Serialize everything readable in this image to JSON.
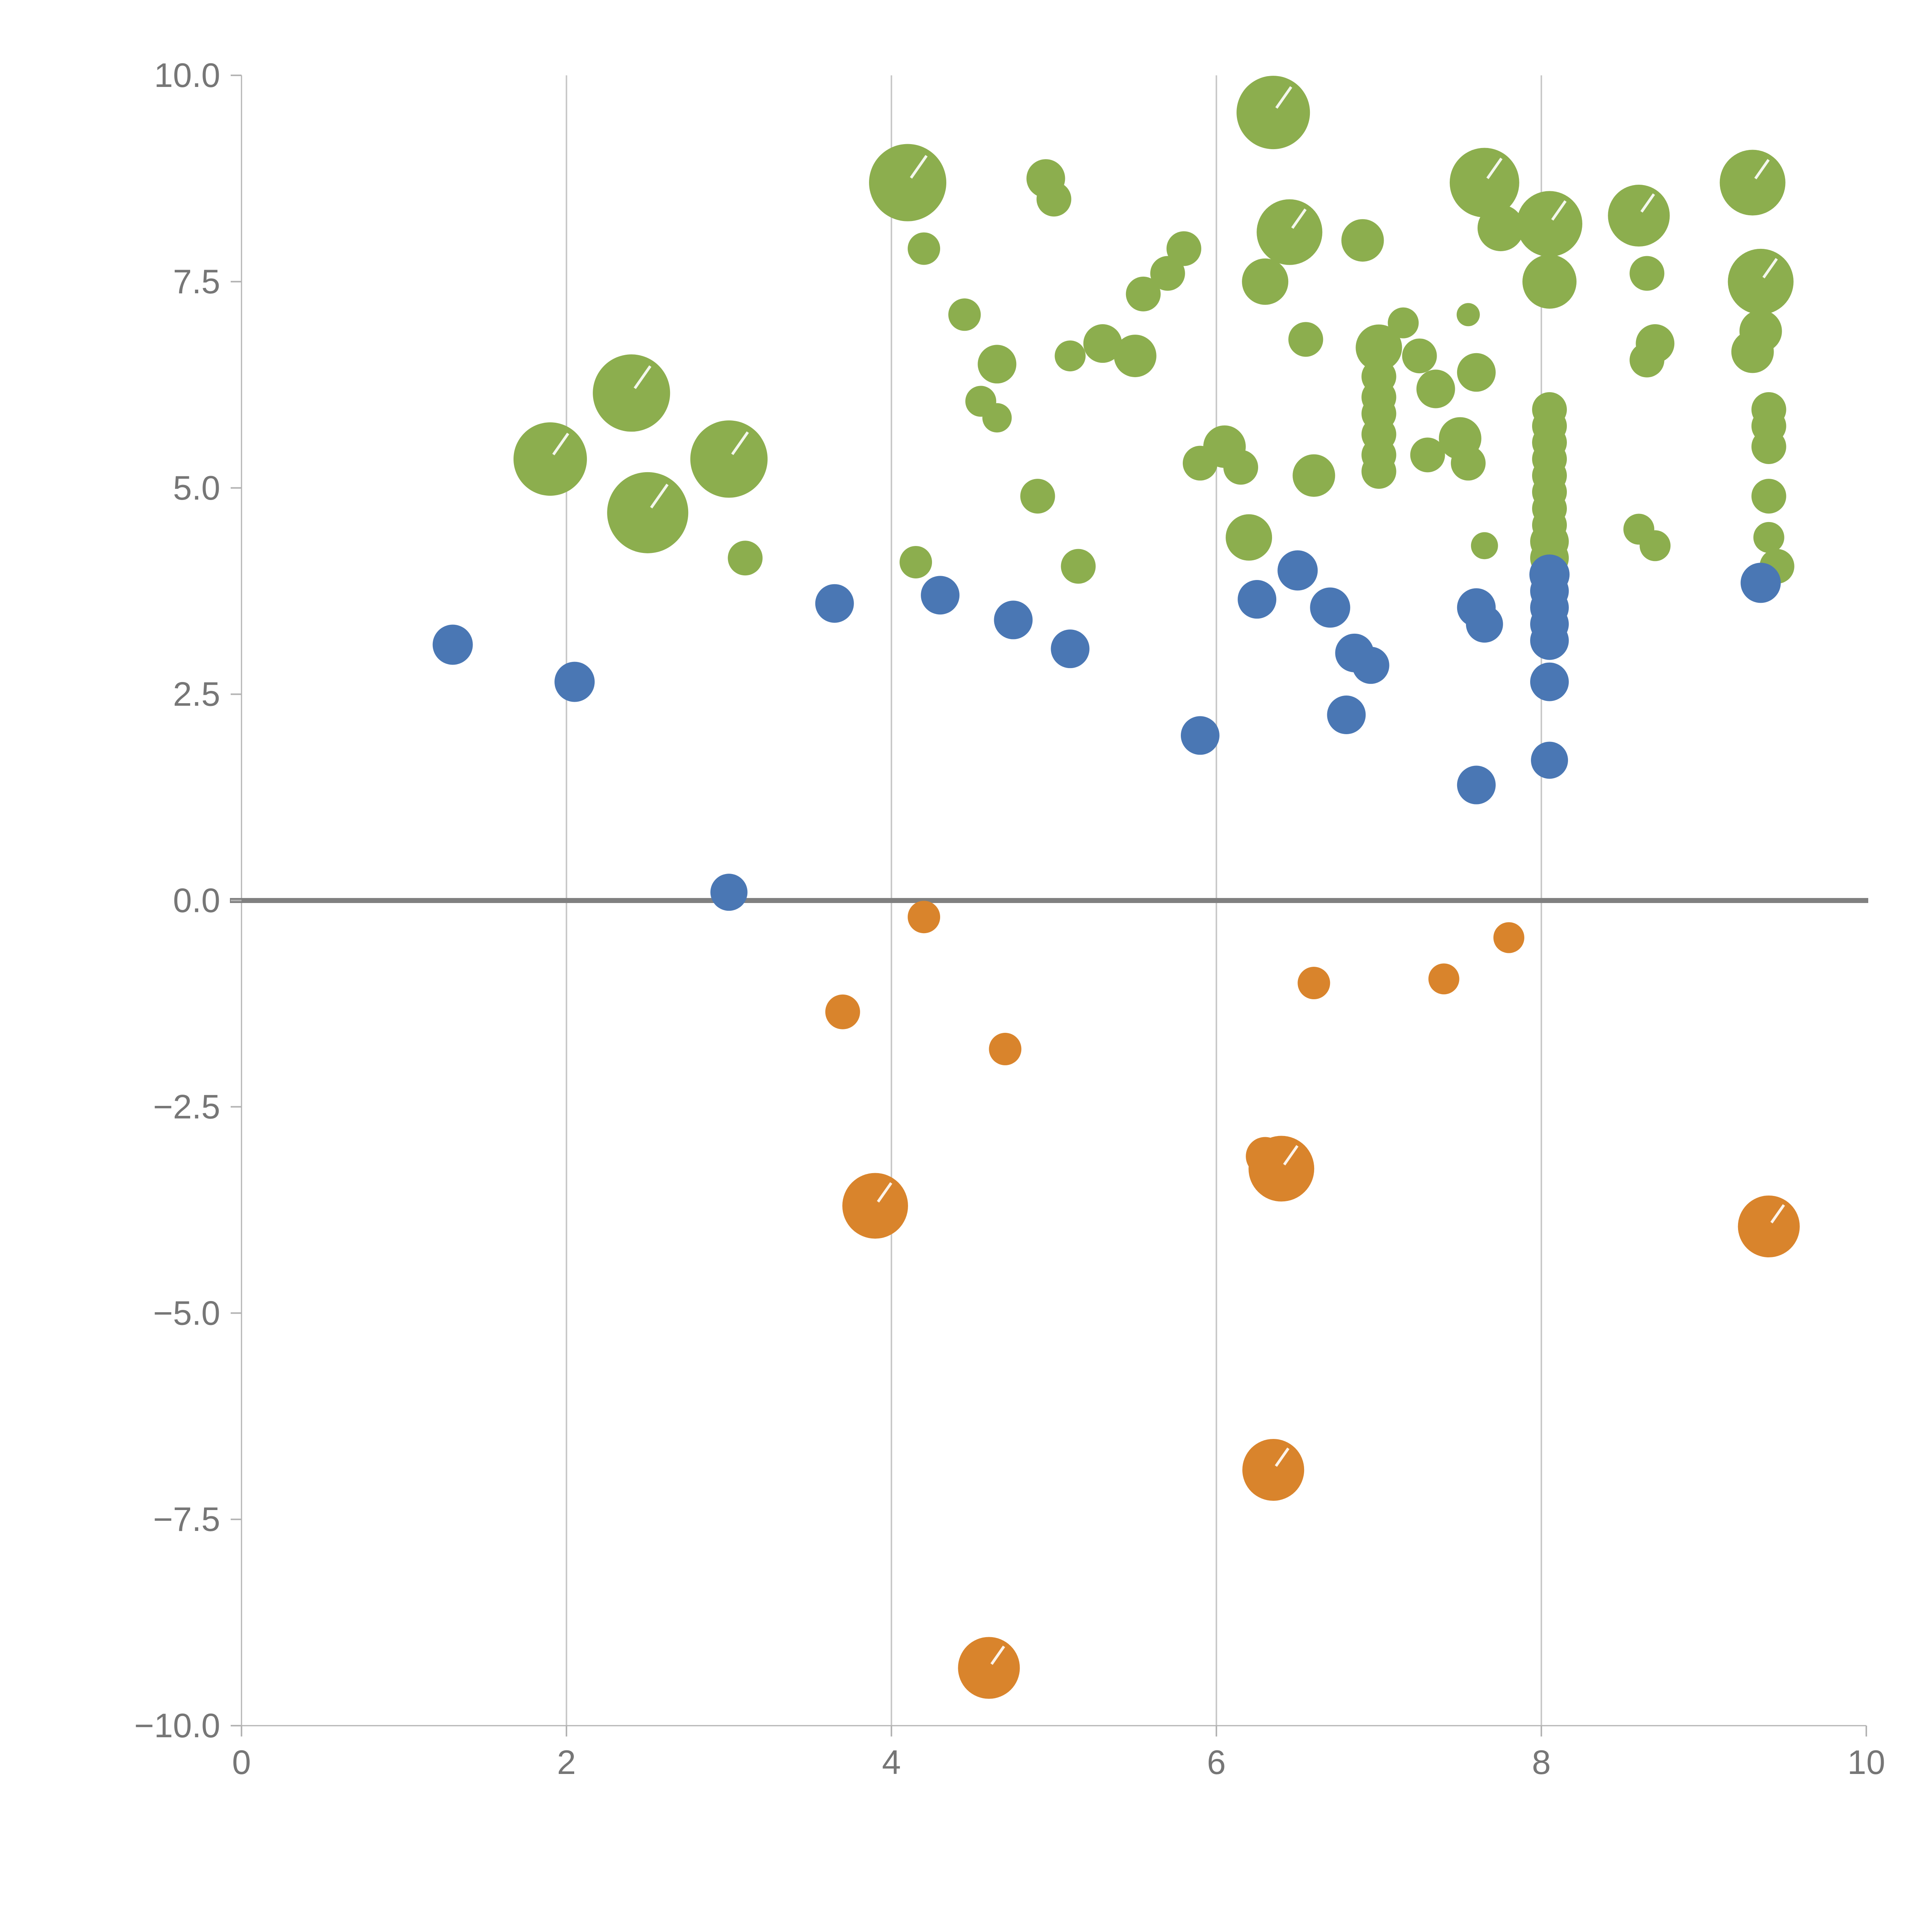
{
  "chart_data": {
    "type": "scatter",
    "title": "",
    "xlabel": "",
    "ylabel": "",
    "xlim": [
      0,
      10
    ],
    "ylim": [
      -10,
      10
    ],
    "grid": "vertical-only",
    "vertical_gridlines_at": [
      2,
      4,
      6,
      8
    ],
    "zero_line": {
      "y": 0,
      "color": "#808080"
    },
    "x_ticks": {
      "values": [
        0,
        2,
        4,
        6,
        8,
        10
      ],
      "labels": [
        "0",
        "2",
        "4",
        "6",
        "8",
        "10"
      ]
    },
    "y_ticks": {
      "values": [
        10,
        7.5,
        5,
        2.5,
        0,
        -2.5,
        -5,
        -7.5,
        -10
      ],
      "labels": [
        "10.0",
        "7.5",
        "5.0",
        "2.5",
        "0.0",
        "−2.5",
        "−5.0",
        "−7.5",
        "−10.0"
      ]
    },
    "colors": {
      "green": "#8CAE4E",
      "blue": "#4A77B4",
      "orange": "#D9842C",
      "grid": "#c9c9c9",
      "spine": "#b3b3b3",
      "tick_text": "#767676"
    },
    "series": [
      {
        "name": "green",
        "color": "#8CAE4E",
        "points": [
          [
            1.9,
            5.35,
            95
          ],
          [
            2.4,
            6.15,
            100
          ],
          [
            2.5,
            4.7,
            105
          ],
          [
            3.0,
            5.35,
            100
          ],
          [
            3.1,
            4.15,
            45
          ],
          [
            4.1,
            8.7,
            100
          ],
          [
            4.2,
            7.9,
            42
          ],
          [
            4.15,
            4.1,
            42
          ],
          [
            4.45,
            7.1,
            42
          ],
          [
            4.65,
            6.5,
            50
          ],
          [
            4.55,
            6.05,
            40
          ],
          [
            4.65,
            5.85,
            38
          ],
          [
            4.9,
            4.9,
            45
          ],
          [
            4.95,
            8.75,
            50
          ],
          [
            5.0,
            8.5,
            45
          ],
          [
            5.1,
            6.6,
            40
          ],
          [
            5.15,
            4.05,
            45
          ],
          [
            5.3,
            6.75,
            50
          ],
          [
            5.5,
            6.6,
            55
          ],
          [
            5.55,
            7.35,
            45
          ],
          [
            5.7,
            7.6,
            45
          ],
          [
            5.8,
            7.9,
            45
          ],
          [
            5.9,
            5.3,
            45
          ],
          [
            6.05,
            5.5,
            55
          ],
          [
            6.15,
            5.25,
            45
          ],
          [
            6.2,
            4.4,
            60
          ],
          [
            6.3,
            7.5,
            60
          ],
          [
            6.35,
            9.55,
            95
          ],
          [
            6.45,
            8.1,
            85
          ],
          [
            6.55,
            6.8,
            45
          ],
          [
            6.6,
            5.15,
            55
          ],
          [
            6.9,
            8.0,
            55
          ],
          [
            7.0,
            6.7,
            60
          ],
          [
            7.0,
            6.35,
            45
          ],
          [
            7.0,
            6.1,
            45
          ],
          [
            7.0,
            5.9,
            45
          ],
          [
            7.0,
            5.65,
            45
          ],
          [
            7.0,
            5.4,
            45
          ],
          [
            7.0,
            5.2,
            45
          ],
          [
            7.15,
            7.0,
            40
          ],
          [
            7.25,
            6.6,
            45
          ],
          [
            7.3,
            5.4,
            45
          ],
          [
            7.35,
            6.2,
            50
          ],
          [
            7.5,
            5.6,
            55
          ],
          [
            7.55,
            5.3,
            45
          ],
          [
            7.55,
            7.1,
            30
          ],
          [
            7.6,
            6.4,
            50
          ],
          [
            7.65,
            8.7,
            90
          ],
          [
            7.75,
            8.15,
            60
          ],
          [
            7.65,
            4.3,
            35
          ],
          [
            8.05,
            8.2,
            85
          ],
          [
            8.05,
            7.5,
            70
          ],
          [
            8.05,
            5.95,
            45
          ],
          [
            8.05,
            5.75,
            45
          ],
          [
            8.05,
            5.55,
            45
          ],
          [
            8.05,
            5.35,
            45
          ],
          [
            8.05,
            5.15,
            45
          ],
          [
            8.05,
            4.95,
            45
          ],
          [
            8.05,
            4.75,
            45
          ],
          [
            8.05,
            4.55,
            45
          ],
          [
            8.05,
            4.35,
            50
          ],
          [
            8.05,
            4.15,
            50
          ],
          [
            8.6,
            8.3,
            80
          ],
          [
            8.65,
            7.6,
            45
          ],
          [
            8.7,
            6.75,
            50
          ],
          [
            8.65,
            6.55,
            45
          ],
          [
            8.6,
            4.5,
            40
          ],
          [
            8.7,
            4.3,
            40
          ],
          [
            9.3,
            8.7,
            85
          ],
          [
            9.35,
            7.5,
            85
          ],
          [
            9.35,
            6.9,
            55
          ],
          [
            9.3,
            6.65,
            55
          ],
          [
            9.4,
            5.95,
            45
          ],
          [
            9.4,
            5.75,
            45
          ],
          [
            9.4,
            5.5,
            45
          ],
          [
            9.4,
            4.9,
            45
          ],
          [
            9.4,
            4.4,
            40
          ],
          [
            9.45,
            4.05,
            45
          ]
        ]
      },
      {
        "name": "blue",
        "color": "#4A77B4",
        "points": [
          [
            1.3,
            3.1,
            52
          ],
          [
            2.05,
            2.65,
            52
          ],
          [
            3.0,
            0.1,
            48
          ],
          [
            3.65,
            3.6,
            50
          ],
          [
            4.3,
            3.7,
            50
          ],
          [
            4.75,
            3.4,
            50
          ],
          [
            5.1,
            3.05,
            50
          ],
          [
            5.9,
            2.0,
            50
          ],
          [
            6.25,
            3.65,
            50
          ],
          [
            6.5,
            4.0,
            52
          ],
          [
            6.7,
            3.55,
            52
          ],
          [
            6.85,
            3.0,
            50
          ],
          [
            6.95,
            2.85,
            48
          ],
          [
            6.8,
            2.25,
            50
          ],
          [
            7.6,
            3.55,
            50
          ],
          [
            7.65,
            3.35,
            48
          ],
          [
            7.6,
            1.4,
            50
          ],
          [
            8.05,
            3.95,
            52
          ],
          [
            8.05,
            3.75,
            50
          ],
          [
            8.05,
            3.55,
            50
          ],
          [
            8.05,
            3.35,
            50
          ],
          [
            8.05,
            3.15,
            50
          ],
          [
            8.05,
            2.65,
            50
          ],
          [
            8.05,
            1.7,
            48
          ],
          [
            9.35,
            3.85,
            52
          ]
        ]
      },
      {
        "name": "orange",
        "color": "#D9842C",
        "points": [
          [
            4.2,
            -0.2,
            42
          ],
          [
            3.7,
            -1.35,
            45
          ],
          [
            4.7,
            -1.8,
            42
          ],
          [
            6.6,
            -1.0,
            42
          ],
          [
            7.4,
            -0.95,
            40
          ],
          [
            7.8,
            -0.45,
            40
          ],
          [
            6.3,
            -3.1,
            50
          ],
          [
            6.4,
            -3.25,
            85
          ],
          [
            3.9,
            -3.7,
            85
          ],
          [
            9.4,
            -3.95,
            80
          ],
          [
            6.35,
            -6.9,
            80
          ],
          [
            4.6,
            -9.3,
            80
          ]
        ]
      }
    ]
  }
}
